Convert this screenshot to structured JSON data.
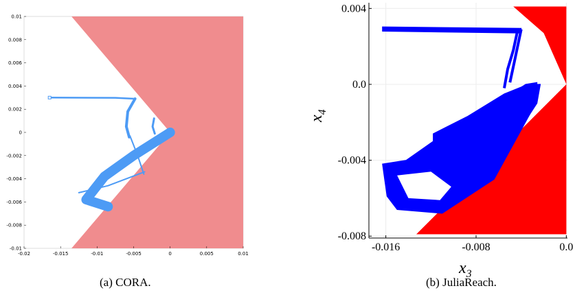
{
  "captions": {
    "left": "(a)  CORA.",
    "right": "(b)  JuliaReach."
  },
  "colors": {
    "cora_unsafe": "#f08c8e",
    "cora_reach": "#4d9bf5",
    "julia_unsafe": "#ff0000",
    "julia_reach": "#0000ff",
    "grid": "#ececec"
  },
  "chart_data": [
    {
      "type": "area",
      "title": "",
      "xlabel": "",
      "ylabel": "",
      "xlim": [
        -0.02,
        0.01
      ],
      "ylim": [
        -0.01,
        0.01
      ],
      "grid": false,
      "x_ticks": [
        "-0.02",
        "-0.015",
        "-0.01",
        "-0.005",
        "0",
        "0.005",
        "0.01"
      ],
      "y_ticks": [
        "0.01",
        "0.008",
        "0.006",
        "0.004",
        "0.002",
        "0",
        "-0.002",
        "-0.004",
        "-0.006",
        "-0.008",
        "-0.01"
      ],
      "series": [
        {
          "kind": "unsafe_set",
          "polygon": [
            [
              -0.0135,
              0.01
            ],
            [
              0.01,
              0.01
            ],
            [
              0.01,
              -0.01
            ],
            [
              -0.0135,
              -0.01
            ],
            [
              0.0,
              0.0
            ]
          ]
        },
        {
          "kind": "reach_set",
          "initial_point": [
            -0.0165,
            0.003
          ],
          "paths": [
            [
              [
                -0.0165,
                0.003
              ],
              [
                -0.0075,
                0.00298
              ],
              [
                -0.0048,
                0.0029
              ]
            ],
            [
              [
                -0.0048,
                0.0029
              ],
              [
                -0.0058,
                0.0018
              ],
              [
                -0.006,
                0.0005
              ],
              [
                -0.0056,
                -0.0004
              ]
            ],
            [
              [
                -0.0022,
                0.0012
              ],
              [
                -0.0024,
                0.0005
              ],
              [
                -0.0021,
                -0.0001
              ]
            ],
            [
              [
                0.0,
                0.0
              ],
              [
                -0.005,
                -0.002
              ],
              [
                -0.009,
                -0.0038
              ],
              [
                -0.0115,
                -0.0058
              ],
              [
                -0.0085,
                -0.0064
              ]
            ],
            [
              [
                -0.0125,
                -0.0052
              ],
              [
                -0.0085,
                -0.0046
              ],
              [
                -0.0035,
                -0.0034
              ]
            ],
            [
              [
                -0.0055,
                -0.0003
              ],
              [
                -0.0045,
                -0.0019
              ],
              [
                -0.0036,
                -0.0036
              ]
            ]
          ]
        }
      ]
    },
    {
      "type": "area",
      "title": "",
      "xlabel": "x_3",
      "ylabel": "x_4",
      "xlim": [
        -0.0175,
        0.0001
      ],
      "ylim": [
        -0.0081,
        0.0043
      ],
      "grid": true,
      "x_ticks": [
        "-0.016",
        "-0.008",
        "0.0"
      ],
      "y_ticks": [
        "0.004",
        "0.0",
        "-0.004",
        "-0.008"
      ],
      "x_tick_values": [
        -0.016,
        -0.008,
        0.0
      ],
      "y_tick_values": [
        0.004,
        0.0,
        -0.004,
        -0.008
      ],
      "series": [
        {
          "kind": "unsafe_set",
          "polygons": [
            [
              [
                -0.0047,
                0.0041
              ],
              [
                0.0,
                0.0041
              ],
              [
                0.0,
                0.0
              ],
              [
                -0.002,
                0.0027
              ]
            ],
            [
              [
                -0.0133,
                -0.0079
              ],
              [
                0.0,
                -0.0079
              ],
              [
                0.0,
                0.0
              ]
            ]
          ]
        },
        {
          "kind": "reach_set",
          "initial_point": [
            -0.0163,
            0.003
          ],
          "polygons": [
            [
              [
                -0.0163,
                0.00303
              ],
              [
                -0.004,
                0.00295
              ],
              [
                -0.004,
                0.0027
              ],
              [
                -0.0163,
                0.0028
              ]
            ],
            [
              [
                -0.0163,
                -0.0042
              ],
              [
                -0.0159,
                -0.0059
              ],
              [
                -0.015,
                -0.0066
              ],
              [
                -0.011,
                -0.0068
              ],
              [
                -0.0064,
                -0.005
              ],
              [
                -0.0027,
                -0.001
              ],
              [
                -0.0026,
                0.0001
              ],
              [
                -0.0036,
                0.0
              ],
              [
                -0.0052,
                -0.0006
              ],
              [
                -0.009,
                -0.0022
              ],
              [
                -0.0118,
                -0.003
              ],
              [
                -0.0142,
                -0.004
              ]
            ],
            [
              [
                -0.0118,
                -0.0026
              ],
              [
                -0.0118,
                -0.003
              ],
              [
                -0.0092,
                -0.0033
              ],
              [
                -0.0078,
                -0.005
              ],
              [
                -0.0064,
                -0.0048
              ],
              [
                -0.0037,
                -0.002
              ],
              [
                -0.0026,
                -0.001
              ],
              [
                -0.0023,
                0.0
              ],
              [
                -0.0034,
                0.0
              ],
              [
                -0.0055,
                -0.0005
              ],
              [
                -0.0088,
                -0.0017
              ],
              [
                -0.0108,
                -0.0023
              ]
            ]
          ],
          "paths": [
            [
              [
                -0.0043,
                0.0029
              ],
              [
                -0.0047,
                0.0018
              ],
              [
                -0.0052,
                0.0008
              ],
              [
                -0.0055,
                -0.0002
              ]
            ],
            [
              [
                -0.004,
                0.0029
              ],
              [
                -0.0046,
                0.0012
              ],
              [
                -0.005,
                0.0001
              ]
            ]
          ]
        }
      ]
    }
  ]
}
